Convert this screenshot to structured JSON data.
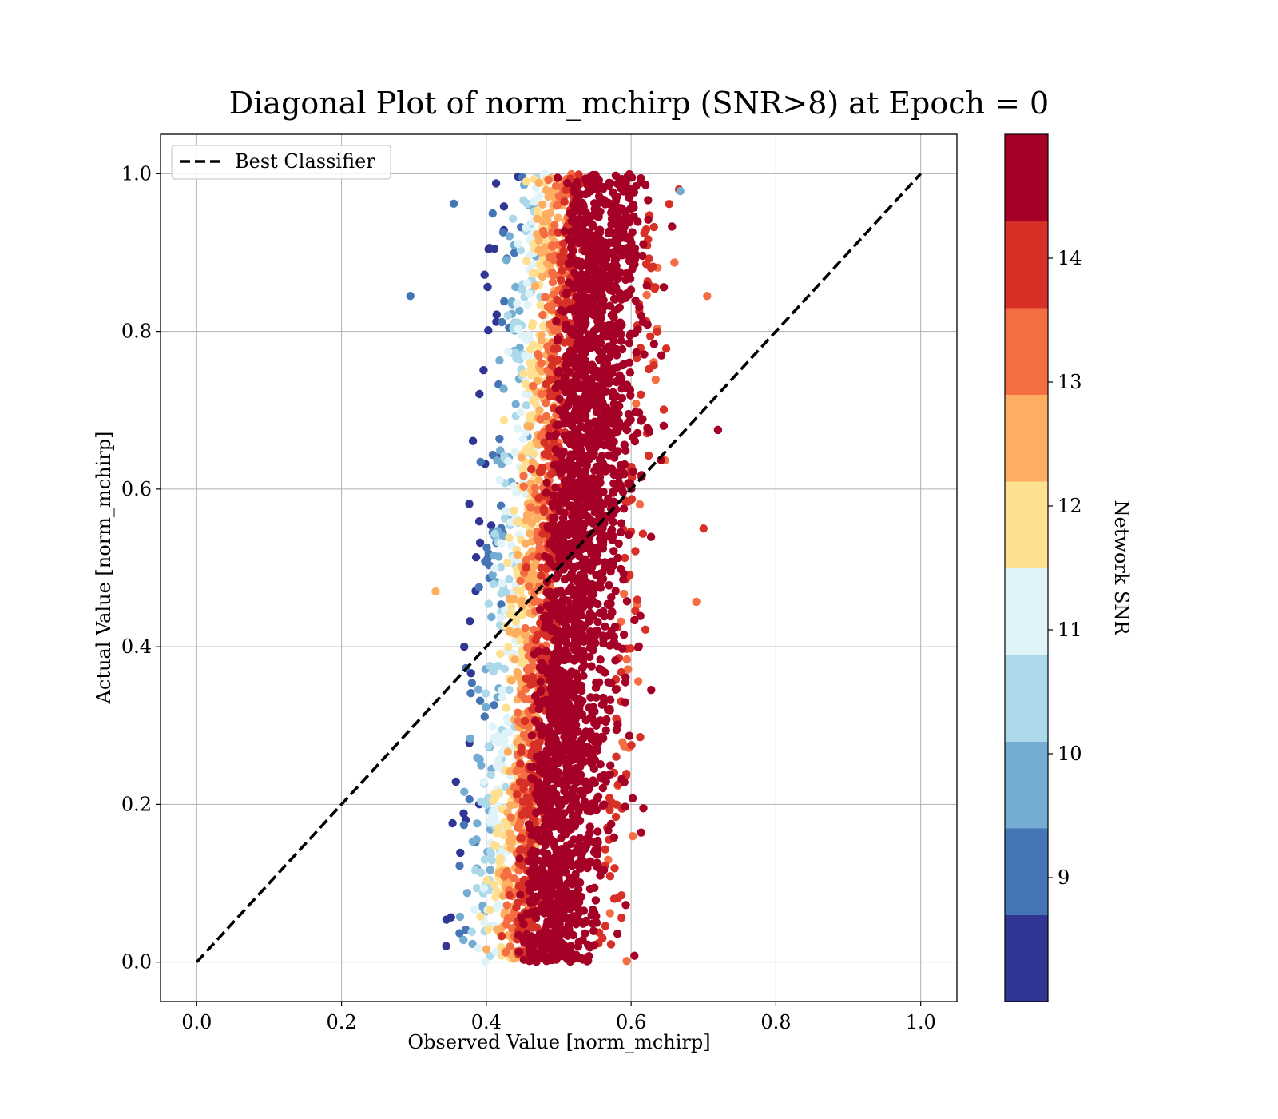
{
  "chart_data": {
    "type": "scatter",
    "title": "Diagonal Plot of norm_mchirp (SNR>8) at Epoch = 0",
    "xlabel": "Observed Value [norm_mchirp]",
    "ylabel": "Actual Value [norm_mchirp]",
    "xlim": [
      -0.05,
      1.05
    ],
    "ylim": [
      -0.05,
      1.05
    ],
    "xticks": [
      0.0,
      0.2,
      0.4,
      0.6,
      0.8,
      1.0
    ],
    "yticks": [
      0.0,
      0.2,
      0.4,
      0.6,
      0.8,
      1.0
    ],
    "xtick_labels": [
      "0.0",
      "0.2",
      "0.4",
      "0.6",
      "0.8",
      "1.0"
    ],
    "ytick_labels": [
      "0.0",
      "0.2",
      "0.4",
      "0.6",
      "0.8",
      "1.0"
    ],
    "grid": true,
    "legend": {
      "placement": "upper-left",
      "entries": [
        "Best Classifier"
      ]
    },
    "reference_line": {
      "name": "Best Classifier",
      "x": [
        0.0,
        1.0
      ],
      "y": [
        0.0,
        1.0
      ],
      "style": "dashed",
      "color": "#000000"
    },
    "colorbar": {
      "label": "Network SNR",
      "range": [
        8,
        15
      ],
      "ticks": [
        9,
        10,
        11,
        12,
        13,
        14
      ],
      "tick_labels": [
        "9",
        "10",
        "11",
        "12",
        "13",
        "14"
      ],
      "colors": [
        "#313695",
        "#4575b4",
        "#74add1",
        "#abd9e9",
        "#e0f3f8",
        "#fee090",
        "#fdae61",
        "#f46d43",
        "#d73027",
        "#a50026"
      ]
    },
    "cloud": {
      "x_range": [
        0.34,
        0.71
      ],
      "y_range": [
        0.0,
        1.0
      ],
      "trend": "observed value increases slightly with actual value",
      "x_center_at_y0": 0.47,
      "x_center_at_y1": 0.54,
      "dominant_snr": 15
    },
    "outliers": [
      {
        "x": 0.295,
        "y": 0.845,
        "snr": 9.3
      },
      {
        "x": 0.705,
        "y": 0.845,
        "snr": 13.3
      },
      {
        "x": 0.72,
        "y": 0.675,
        "snr": 14.8
      },
      {
        "x": 0.7,
        "y": 0.55,
        "snr": 14.2
      },
      {
        "x": 0.69,
        "y": 0.457,
        "snr": 13.4
      },
      {
        "x": 0.33,
        "y": 0.47,
        "snr": 12.6
      },
      {
        "x": 0.355,
        "y": 0.962,
        "snr": 9.3
      },
      {
        "x": 0.668,
        "y": 0.978,
        "snr": 9.9
      }
    ]
  }
}
